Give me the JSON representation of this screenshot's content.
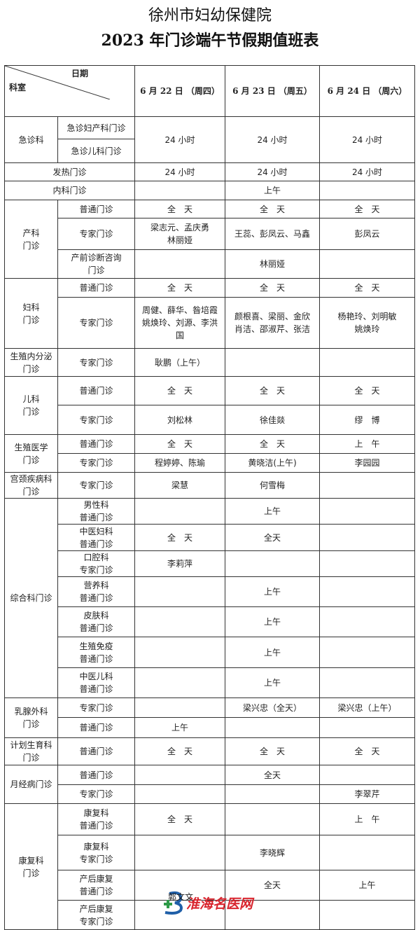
{
  "title": {
    "line1": "徐州市妇幼保健院",
    "line2": "2023 年门诊端午节假期值班表"
  },
  "header": {
    "date_label": "日期",
    "dept_label": "科室",
    "days": [
      "6 月 22 日 （周四）",
      "6 月 23 日 （周五）",
      "6 月 24 日 （周六）"
    ]
  },
  "groups": [
    {
      "dept": "急诊科",
      "merged_days": true,
      "rows": [
        {
          "sub": "急诊妇产科门诊",
          "cells": [
            "24 小时",
            "24 小时",
            "24 小时"
          ]
        },
        {
          "sub": "急诊儿科门诊",
          "cells": []
        }
      ]
    },
    {
      "dept": "发热门诊",
      "span_dept": true,
      "rows": [
        {
          "sub": "",
          "cells": [
            "24 小时",
            "24 小时",
            "24 小时"
          ]
        }
      ]
    },
    {
      "dept": "内科门诊",
      "span_dept": true,
      "rows": [
        {
          "sub": "",
          "cells": [
            "",
            "上午",
            ""
          ]
        }
      ]
    },
    {
      "dept": "产科\n门诊",
      "rows": [
        {
          "sub": "普通门诊",
          "cells": [
            "全　天",
            "全　天",
            "全　天"
          ]
        },
        {
          "sub": "专家门诊",
          "cells": [
            "梁志元、孟庆勇\n林丽娅",
            "王蕊、彭凤云、马鑫",
            "彭凤云"
          ]
        },
        {
          "sub": "产前诊断咨询\n门诊",
          "cells": [
            "",
            "林丽娅",
            ""
          ]
        }
      ]
    },
    {
      "dept": "妇科\n门诊",
      "rows": [
        {
          "sub": "普通门诊",
          "cells": [
            "全　天",
            "全　天",
            "全　天"
          ]
        },
        {
          "sub": "专家门诊",
          "cells": [
            "周健、薛华、昝培霞\n姚焕玲、刘源、李洪\n国",
            "颜根喜、梁丽、金欣\n肖洁、邵淑芹、张洁",
            "杨艳玲、刘明敏\n姚焕玲"
          ]
        }
      ]
    },
    {
      "dept": "生殖内分泌\n门诊",
      "rows": [
        {
          "sub": "专家门诊",
          "cells": [
            "耿鹏（上午）",
            "",
            ""
          ]
        }
      ]
    },
    {
      "dept": "儿科\n门诊",
      "rows": [
        {
          "sub": "普通门诊",
          "cells": [
            "全　天",
            "全　天",
            "全　天"
          ]
        },
        {
          "sub": "专家门诊",
          "cells": [
            "刘松林",
            "徐佳燚",
            "缪　博"
          ]
        }
      ]
    },
    {
      "dept": "生殖医学\n门诊",
      "rows": [
        {
          "sub": "普通门诊",
          "cells": [
            "全　天",
            "全　天",
            "上　午"
          ]
        },
        {
          "sub": "专家门诊",
          "cells": [
            "程婷婷、陈瑜",
            "黄晓洁(上午)",
            "李园园"
          ]
        }
      ]
    },
    {
      "dept": "宫颈疾病科\n门诊",
      "rows": [
        {
          "sub": "专家门诊",
          "cells": [
            "梁慧",
            "何雪梅",
            ""
          ]
        }
      ]
    },
    {
      "dept": "综合科门诊",
      "rows": [
        {
          "sub": "男性科\n普通门诊",
          "cells": [
            "",
            "上午",
            ""
          ]
        },
        {
          "sub": "中医妇科\n普通门诊",
          "cells": [
            "全　天",
            "全天",
            ""
          ]
        },
        {
          "sub": "口腔科\n专家门诊",
          "cells": [
            "李莉萍",
            "",
            ""
          ]
        },
        {
          "sub": "营养科\n普通门诊",
          "cells": [
            "",
            "上午",
            ""
          ]
        },
        {
          "sub": "皮肤科\n普通门诊",
          "cells": [
            "",
            "上午",
            ""
          ]
        },
        {
          "sub": "生殖免疫\n普通门诊",
          "cells": [
            "",
            "上午",
            ""
          ]
        },
        {
          "sub": "中医儿科\n普通门诊",
          "cells": [
            "",
            "上午",
            ""
          ]
        }
      ]
    },
    {
      "dept": "乳腺外科\n门诊",
      "rows": [
        {
          "sub": "专家门诊",
          "cells": [
            "",
            "梁兴忠（全天）",
            "梁兴忠（上午）"
          ]
        },
        {
          "sub": "普通门诊",
          "cells": [
            "上午",
            "",
            ""
          ]
        }
      ]
    },
    {
      "dept": "计划生育科\n门诊",
      "rows": [
        {
          "sub": "普通门诊",
          "cells": [
            "全　天",
            "全　天",
            "全　天"
          ]
        }
      ]
    },
    {
      "dept": "月经病门诊",
      "rows": [
        {
          "sub": "普通门诊",
          "cells": [
            "",
            "全天",
            ""
          ]
        },
        {
          "sub": "专家门诊",
          "cells": [
            "",
            "",
            "李翠芹"
          ]
        }
      ]
    },
    {
      "dept": "康复科\n门诊",
      "rows": [
        {
          "sub": "康复科\n普通门诊",
          "cells": [
            "全　天",
            "",
            "上　午"
          ]
        },
        {
          "sub": "康复科\n专家门诊",
          "cells": [
            "",
            "李晓辉",
            ""
          ]
        },
        {
          "sub": "产后康复\n普通门诊",
          "cells": [
            "",
            "全天",
            "上午"
          ]
        },
        {
          "sub": "产后康复\n专家门诊",
          "cells": [
            "郭文文",
            "",
            ""
          ]
        }
      ]
    }
  ],
  "watermark": {
    "text": "淮海名医网",
    "colors": {
      "text": "#d9262f",
      "logo_blue": "#1f5fa8",
      "logo_green": "#2e9a48"
    }
  }
}
